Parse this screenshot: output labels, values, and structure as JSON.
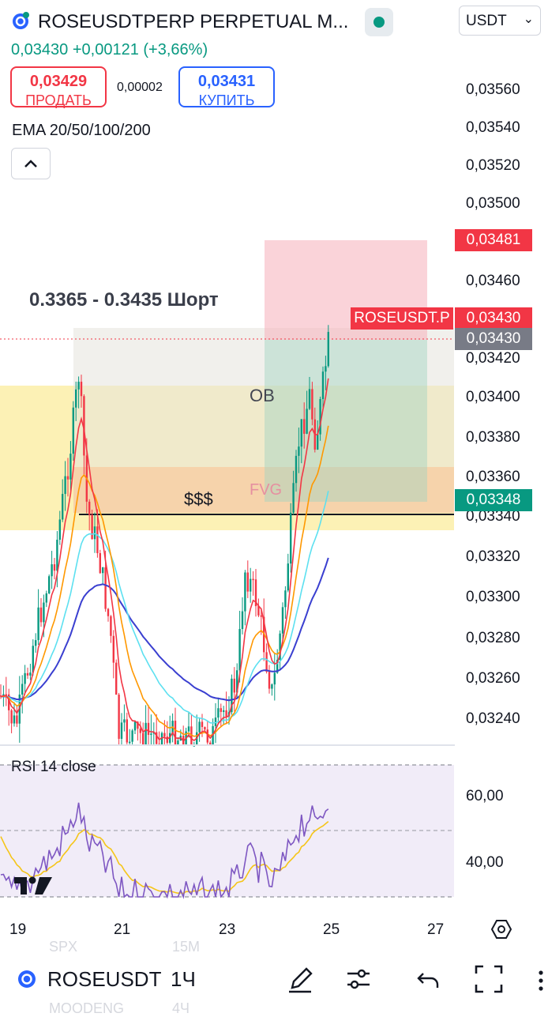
{
  "header": {
    "title": "ROSEUSDTPERP PERPETUAL M...",
    "currency": "USDT",
    "last_price": "0,03430",
    "change": "+0,00121 (+3,66%)"
  },
  "orders": {
    "sell_price": "0,03429",
    "sell_label": "ПРОДАТЬ",
    "spread": "0,00002",
    "buy_price": "0,03431",
    "buy_label": "КУПИТЬ"
  },
  "indicator": {
    "ema_label": "EMA 20/50/100/200",
    "rsi_label": "RSI 14 close"
  },
  "annotations": {
    "trade_idea": "0.3365 - 0.3435 Шорт",
    "ob": "OB",
    "fvg": "FVG",
    "liquidity": "$$$"
  },
  "price_axis": {
    "ticks": [
      "0,03560",
      "0,03540",
      "0,03520",
      "0,03500",
      "0,03460",
      "0,03420",
      "0,03400",
      "0,03380",
      "0,03360",
      "0,03340",
      "0,03320",
      "0,03300",
      "0,03280",
      "0,03260",
      "0,03240"
    ],
    "stop_label": "0,03481",
    "symbol_tag": "ROSEUSDT.P",
    "current_label": "0,03430",
    "current_label_2": "0,03430",
    "target_label": "0,03348"
  },
  "rsi_axis": {
    "ticks": [
      "60,00",
      "40,00"
    ]
  },
  "time_axis": {
    "ticks": [
      "19",
      "21",
      "23",
      "25",
      "27"
    ]
  },
  "bottom": {
    "symbol": "ROSEUSDT",
    "timeframe": "1Ч",
    "ghost_1": "SPX",
    "ghost_2": "15M",
    "ghost_3": "MOODENG",
    "ghost_4": "4Ч"
  },
  "colors": {
    "up": "#089981",
    "down": "#f23645",
    "ema20": "#f23645",
    "ema50": "#ff9800",
    "ema100": "#5ce0f0",
    "ema200": "#3a3fd0",
    "rsi": "#7e57c2",
    "rsi_ma": "#f5c518"
  },
  "icons": [
    "symbol-logo-icon",
    "live-dot-icon",
    "chevron-down-icon",
    "chevron-up-icon",
    "settings-icon",
    "tradingview-logo-icon",
    "pen-icon",
    "sliders-icon",
    "undo-icon",
    "fullscreen-icon"
  ]
}
